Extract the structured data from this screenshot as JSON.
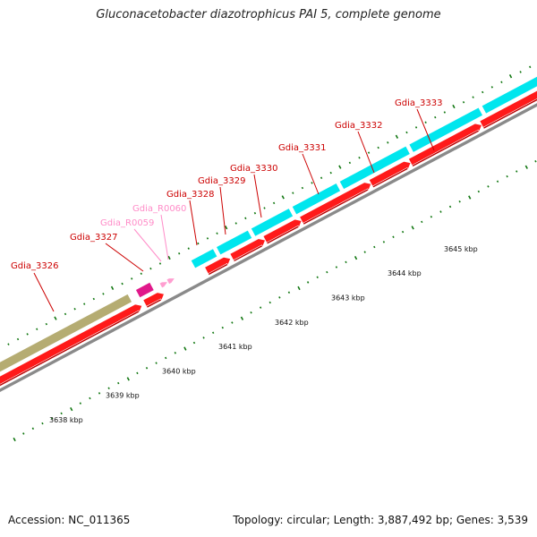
{
  "title": "Gluconacetobacter diazotrophicus PAI 5, complete genome",
  "footer": {
    "accession": "Accession: NC_011365",
    "summary": "Topology: circular; Length: 3,887,492 bp; Genes: 3,539"
  },
  "colors": {
    "cds": "#ff1a1a",
    "cds_dark": "#b80000",
    "forward_other": "#00e6ee",
    "forward_first": "#b5ac72",
    "rna": "#e0188a",
    "rna_light": "#ff9ed0",
    "backbone": "#8a8a8a",
    "tick": "#117711",
    "label_red": "#cc0000",
    "label_pink": "#ff8cc8"
  },
  "scale_labels": [
    "3638 kbp",
    "3639 kbp",
    "3640 kbp",
    "3641 kbp",
    "3642 kbp",
    "3643 kbp",
    "3644 kbp",
    "3645 kbp"
  ],
  "gene_labels": [
    {
      "name": "Gdia_3326",
      "kind": "cds"
    },
    {
      "name": "Gdia_3327",
      "kind": "cds"
    },
    {
      "name": "Gdia_R0059",
      "kind": "rna"
    },
    {
      "name": "Gdia_R0060",
      "kind": "rna"
    },
    {
      "name": "Gdia_3328",
      "kind": "cds"
    },
    {
      "name": "Gdia_3329",
      "kind": "cds"
    },
    {
      "name": "Gdia_3330",
      "kind": "cds"
    },
    {
      "name": "Gdia_3331",
      "kind": "cds"
    },
    {
      "name": "Gdia_3332",
      "kind": "cds"
    },
    {
      "name": "Gdia_3333",
      "kind": "cds"
    }
  ]
}
